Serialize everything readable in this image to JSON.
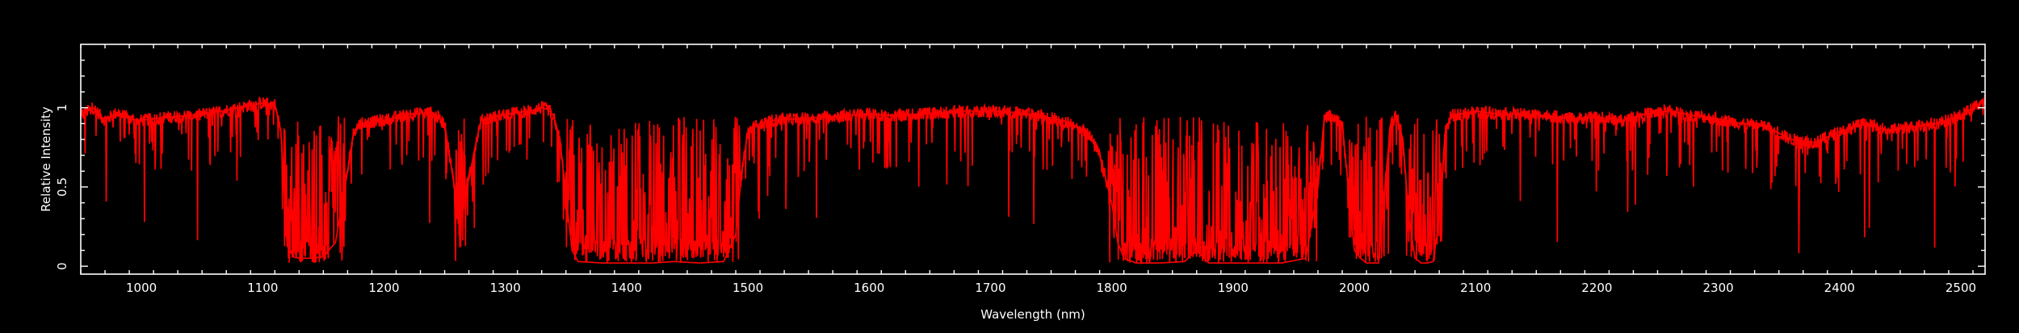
{
  "chart_data": {
    "type": "line",
    "title": "",
    "xlabel": "Wavelength (nm)",
    "ylabel": "Relative Intensity",
    "xlim": [
      950,
      2520
    ],
    "ylim": [
      -0.05,
      1.4
    ],
    "x_ticks": [
      "1000",
      "1100",
      "1200",
      "1300",
      "1400",
      "1500",
      "1600",
      "1700",
      "1800",
      "1900",
      "2000",
      "2100",
      "2200",
      "2300",
      "2400",
      "2500"
    ],
    "y_ticks": [
      "0",
      "0.5",
      "1"
    ],
    "grid": false,
    "background": "#000000",
    "axis_color": "#ffffff",
    "series": [
      {
        "color": "#ff0000",
        "x": [
          950,
          960,
          970,
          980,
          990,
          1000,
          1020,
          1040,
          1060,
          1080,
          1100,
          1110,
          1115,
          1120,
          1125,
          1130,
          1140,
          1150,
          1160,
          1170,
          1175,
          1180,
          1200,
          1220,
          1240,
          1250,
          1255,
          1260,
          1265,
          1270,
          1275,
          1280,
          1300,
          1320,
          1330,
          1335,
          1340,
          1345,
          1350,
          1355,
          1360,
          1380,
          1400,
          1420,
          1440,
          1460,
          1480,
          1490,
          1495,
          1500,
          1510,
          1520,
          1540,
          1560,
          1580,
          1600,
          1620,
          1640,
          1660,
          1680,
          1700,
          1720,
          1740,
          1760,
          1780,
          1790,
          1800,
          1805,
          1810,
          1820,
          1840,
          1860,
          1870,
          1880,
          1900,
          1920,
          1940,
          1960,
          1970,
          1975,
          1980,
          1990,
          1995,
          2000,
          2005,
          2010,
          2020,
          2025,
          2030,
          2035,
          2040,
          2045,
          2050,
          2055,
          2060,
          2065,
          2070,
          2075,
          2080,
          2100,
          2120,
          2140,
          2160,
          2180,
          2200,
          2220,
          2240,
          2260,
          2280,
          2300,
          2320,
          2340,
          2360,
          2380,
          2400,
          2420,
          2440,
          2460,
          2480,
          2500,
          2510,
          2520
        ],
        "y": [
          0.95,
          1.0,
          0.92,
          0.97,
          0.93,
          0.92,
          0.94,
          0.95,
          0.97,
          1.0,
          1.03,
          1.02,
          0.85,
          0.15,
          0.06,
          0.05,
          0.05,
          0.06,
          0.15,
          0.6,
          0.85,
          0.9,
          0.92,
          0.96,
          0.97,
          0.9,
          0.65,
          0.4,
          0.45,
          0.55,
          0.75,
          0.92,
          0.96,
          0.98,
          1.0,
          0.99,
          0.95,
          0.8,
          0.45,
          0.1,
          0.03,
          0.02,
          0.02,
          0.02,
          0.03,
          0.02,
          0.03,
          0.2,
          0.6,
          0.85,
          0.9,
          0.92,
          0.93,
          0.94,
          0.95,
          0.96,
          0.95,
          0.96,
          0.97,
          0.98,
          0.98,
          0.97,
          0.95,
          0.92,
          0.85,
          0.7,
          0.4,
          0.15,
          0.05,
          0.02,
          0.02,
          0.03,
          0.1,
          0.02,
          0.02,
          0.02,
          0.02,
          0.05,
          0.5,
          0.92,
          0.95,
          0.9,
          0.5,
          0.1,
          0.05,
          0.02,
          0.02,
          0.5,
          0.9,
          0.95,
          0.8,
          0.3,
          0.05,
          0.02,
          0.02,
          0.03,
          0.3,
          0.85,
          0.95,
          0.98,
          0.96,
          0.96,
          0.95,
          0.93,
          0.94,
          0.92,
          0.96,
          0.98,
          0.95,
          0.93,
          0.9,
          0.88,
          0.8,
          0.78,
          0.85,
          0.9,
          0.86,
          0.88,
          0.9,
          0.95,
          1.0,
          1.05
        ]
      }
    ]
  }
}
